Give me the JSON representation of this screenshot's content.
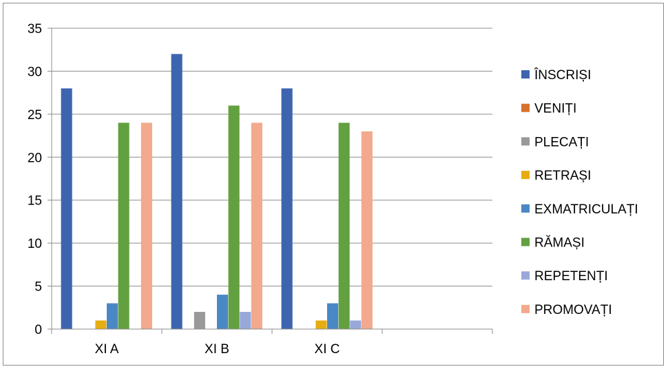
{
  "chart_data": {
    "type": "bar",
    "categories": [
      "XI A",
      "XI B",
      "XI C",
      ""
    ],
    "ylim": [
      0,
      35
    ],
    "yticks": [
      0,
      5,
      10,
      15,
      20,
      25,
      30,
      35
    ],
    "grid": true,
    "legend": "right",
    "series": [
      {
        "name": "ÎNSCRIȘI",
        "color": "#3d64ae",
        "values": [
          28,
          32,
          28,
          null
        ]
      },
      {
        "name": "VENIȚI",
        "color": "#d9712c",
        "values": [
          0,
          0,
          0,
          null
        ]
      },
      {
        "name": "PLECAȚI",
        "color": "#999999",
        "values": [
          0,
          2,
          0,
          null
        ]
      },
      {
        "name": "RETRAȘI",
        "color": "#e6ad12",
        "values": [
          1,
          0,
          1,
          null
        ]
      },
      {
        "name": "EXMATRICULAȚI",
        "color": "#4a88c5",
        "values": [
          3,
          4,
          3,
          null
        ]
      },
      {
        "name": "RĂMAȘI",
        "color": "#63a03f",
        "values": [
          24,
          26,
          24,
          null
        ]
      },
      {
        "name": "REPETENȚI",
        "color": "#98a9d9",
        "values": [
          0,
          2,
          1,
          null
        ]
      },
      {
        "name": "PROMOVAȚI",
        "color": "#f2a98d",
        "values": [
          24,
          24,
          23,
          null
        ]
      }
    ]
  }
}
